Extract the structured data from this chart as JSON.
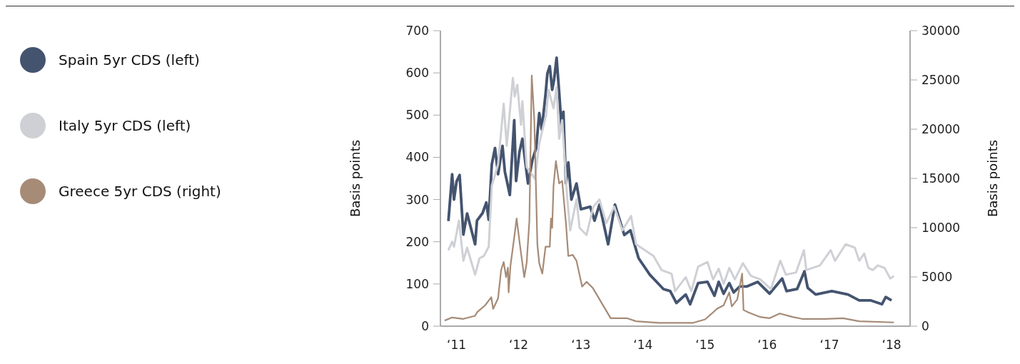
{
  "chart_data": {
    "type": "line",
    "ylabel": "Basis points",
    "y2label": "Basis points",
    "legend": "left",
    "xlim": [
      "2010-09-28",
      "2018-04-20"
    ],
    "xticks": [
      {
        "value": "2011-01-01",
        "label": "‘11"
      },
      {
        "value": "2012-01-01",
        "label": "‘12"
      },
      {
        "value": "2013-01-01",
        "label": "‘13"
      },
      {
        "value": "2014-01-01",
        "label": "‘14"
      },
      {
        "value": "2015-01-01",
        "label": "‘15"
      },
      {
        "value": "2016-01-01",
        "label": "‘16"
      },
      {
        "value": "2017-01-01",
        "label": "‘17"
      },
      {
        "value": "2018-01-01",
        "label": "‘18"
      }
    ],
    "ylim": [
      0,
      700
    ],
    "yticks": [
      0,
      100,
      200,
      300,
      400,
      500,
      600,
      700
    ],
    "y2lim": [
      0,
      30000
    ],
    "y2ticks": [
      0,
      5000,
      10000,
      15000,
      20000,
      25000,
      30000
    ],
    "series": [
      {
        "name": "Spain 5yr CDS (left)",
        "color": "#44546f",
        "axis": "y",
        "x": [
          "2010-11-14",
          "2010-12-06",
          "2010-12-17",
          "2011-01-01",
          "2011-01-19",
          "2011-02-10",
          "2011-03-04",
          "2011-04-20",
          "2011-05-01",
          "2011-06-03",
          "2011-06-25",
          "2011-07-09",
          "2011-07-27",
          "2011-08-15",
          "2011-09-02",
          "2011-09-28",
          "2011-10-12",
          "2011-11-10",
          "2011-12-06",
          "2011-12-17",
          "2012-01-05",
          "2012-01-23",
          "2012-02-25",
          "2012-03-22",
          "2012-04-13",
          "2012-05-01",
          "2012-05-16",
          "2012-06-07",
          "2012-06-18",
          "2012-07-02",
          "2012-07-16",
          "2012-07-27",
          "2012-08-11",
          "2012-08-26",
          "2012-09-09",
          "2012-09-20",
          "2012-10-05",
          "2012-10-19",
          "2012-11-06",
          "2012-12-06",
          "2013-01-01",
          "2013-02-25",
          "2013-03-22",
          "2013-04-20",
          "2013-06-10",
          "2013-07-20",
          "2013-09-13",
          "2013-10-19",
          "2013-12-06",
          "2014-02-10",
          "2014-05-01",
          "2014-06-10",
          "2014-07-16",
          "2014-09-09",
          "2014-10-05",
          "2014-11-21",
          "2015-01-15",
          "2015-02-25",
          "2015-03-22",
          "2015-04-20",
          "2015-05-23",
          "2015-06-18",
          "2015-07-24",
          "2015-09-02",
          "2015-11-06",
          "2016-01-15",
          "2016-03-29",
          "2016-04-24",
          "2016-06-25",
          "2016-08-07",
          "2016-08-26",
          "2016-10-12",
          "2017-01-15",
          "2017-04-20",
          "2017-06-25",
          "2017-09-02",
          "2017-11-06",
          "2017-11-28",
          "2018-01-01"
        ],
        "values": [
          249,
          360,
          300,
          343,
          358,
          217,
          267,
          194,
          250,
          268,
          293,
          252,
          383,
          422,
          360,
          427,
          366,
          311,
          488,
          344,
          411,
          444,
          338,
          394,
          422,
          505,
          466,
          549,
          599,
          616,
          560,
          583,
          636,
          555,
          472,
          508,
          338,
          388,
          300,
          338,
          277,
          283,
          250,
          288,
          194,
          288,
          216,
          227,
          161,
          122,
          88,
          83,
          55,
          75,
          52,
          102,
          105,
          72,
          105,
          77,
          102,
          80,
          94,
          94,
          105,
          77,
          113,
          83,
          88,
          130,
          91,
          75,
          83,
          75,
          61,
          61,
          52,
          69,
          61
        ]
      },
      {
        "name": "Italy 5yr CDS (left)",
        "color": "#cfd0d5",
        "axis": "y",
        "x": [
          "2010-11-14",
          "2010-12-06",
          "2010-12-17",
          "2011-01-15",
          "2011-02-10",
          "2011-03-04",
          "2011-04-20",
          "2011-05-16",
          "2011-06-10",
          "2011-07-09",
          "2011-07-27",
          "2011-09-02",
          "2011-10-05",
          "2011-10-23",
          "2011-11-28",
          "2011-12-09",
          "2011-12-24",
          "2012-01-15",
          "2012-01-23",
          "2012-02-17",
          "2012-04-06",
          "2012-05-01",
          "2012-06-10",
          "2012-06-25",
          "2012-07-24",
          "2012-08-11",
          "2012-08-26",
          "2012-09-13",
          "2012-10-12",
          "2012-10-30",
          "2012-12-06",
          "2012-12-24",
          "2013-02-03",
          "2013-03-15",
          "2013-04-20",
          "2013-05-30",
          "2013-07-16",
          "2013-09-02",
          "2013-10-23",
          "2013-11-21",
          "2014-03-04",
          "2014-04-20",
          "2014-06-18",
          "2014-07-09",
          "2014-09-09",
          "2014-10-12",
          "2014-11-21",
          "2015-01-15",
          "2015-02-17",
          "2015-03-22",
          "2015-04-20",
          "2015-05-23",
          "2015-06-25",
          "2015-08-11",
          "2015-09-28",
          "2015-11-21",
          "2016-01-23",
          "2016-03-18",
          "2016-04-20",
          "2016-06-18",
          "2016-08-04",
          "2016-08-18",
          "2016-11-06",
          "2017-01-08",
          "2017-02-03",
          "2017-04-06",
          "2017-05-30",
          "2017-06-25",
          "2017-07-24",
          "2017-08-18",
          "2017-09-13",
          "2017-10-12",
          "2017-11-21",
          "2017-12-24",
          "2018-01-15"
        ],
        "values": [
          180,
          200,
          188,
          250,
          155,
          186,
          122,
          161,
          166,
          188,
          333,
          383,
          527,
          427,
          588,
          544,
          572,
          477,
          533,
          377,
          349,
          433,
          500,
          560,
          516,
          566,
          444,
          488,
          305,
          227,
          300,
          233,
          216,
          283,
          300,
          244,
          283,
          227,
          261,
          194,
          166,
          133,
          124,
          83,
          116,
          83,
          141,
          152,
          111,
          136,
          100,
          138,
          111,
          149,
          119,
          111,
          88,
          155,
          122,
          127,
          180,
          133,
          144,
          180,
          155,
          194,
          186,
          155,
          172,
          138,
          133,
          144,
          138,
          113,
          119
        ]
      },
      {
        "name": "Greece 5yr CDS (right)",
        "color": "#a68b77",
        "axis": "y2",
        "x": [
          "2010-10-23",
          "2010-12-06",
          "2011-02-10",
          "2011-04-20",
          "2011-05-01",
          "2011-06-18",
          "2011-07-24",
          "2011-08-04",
          "2011-09-02",
          "2011-09-20",
          "2011-10-05",
          "2011-10-19",
          "2011-10-30",
          "2011-11-03",
          "2011-11-14",
          "2011-12-06",
          "2011-12-20",
          "2012-01-08",
          "2012-02-03",
          "2012-02-17",
          "2012-03-04",
          "2012-03-18",
          "2012-04-02",
          "2012-04-20",
          "2012-05-01",
          "2012-05-19",
          "2012-06-07",
          "2012-07-02",
          "2012-07-09",
          "2012-07-16",
          "2012-07-24",
          "2012-08-07",
          "2012-08-26",
          "2012-09-13",
          "2012-10-05",
          "2012-10-19",
          "2012-11-14",
          "2012-12-06",
          "2013-01-08",
          "2013-02-03",
          "2013-03-11",
          "2013-06-25",
          "2013-09-28",
          "2013-11-21",
          "2014-04-06",
          "2014-10-23",
          "2015-01-01",
          "2015-02-10",
          "2015-03-11",
          "2015-04-20",
          "2015-05-23",
          "2015-06-07",
          "2015-07-09",
          "2015-08-07",
          "2015-08-15",
          "2015-09-13",
          "2015-11-21",
          "2016-01-15",
          "2016-03-15",
          "2016-05-30",
          "2016-07-24",
          "2016-12-06",
          "2017-03-22",
          "2017-06-25",
          "2018-01-15"
        ],
        "values": [
          570,
          880,
          740,
          1050,
          1400,
          2120,
          2950,
          1760,
          2830,
          5690,
          6520,
          4980,
          5930,
          3430,
          6160,
          9020,
          10930,
          8310,
          4980,
          6400,
          10690,
          25450,
          20930,
          8310,
          6400,
          5330,
          8070,
          8070,
          10930,
          9980,
          14260,
          16760,
          14500,
          14740,
          10450,
          7120,
          7240,
          6640,
          4020,
          4500,
          3900,
          810,
          810,
          500,
          340,
          340,
          690,
          1290,
          1760,
          2120,
          3430,
          2000,
          2710,
          5330,
          1640,
          1400,
          930,
          810,
          1290,
          930,
          740,
          740,
          810,
          500,
          380
        ]
      }
    ]
  }
}
